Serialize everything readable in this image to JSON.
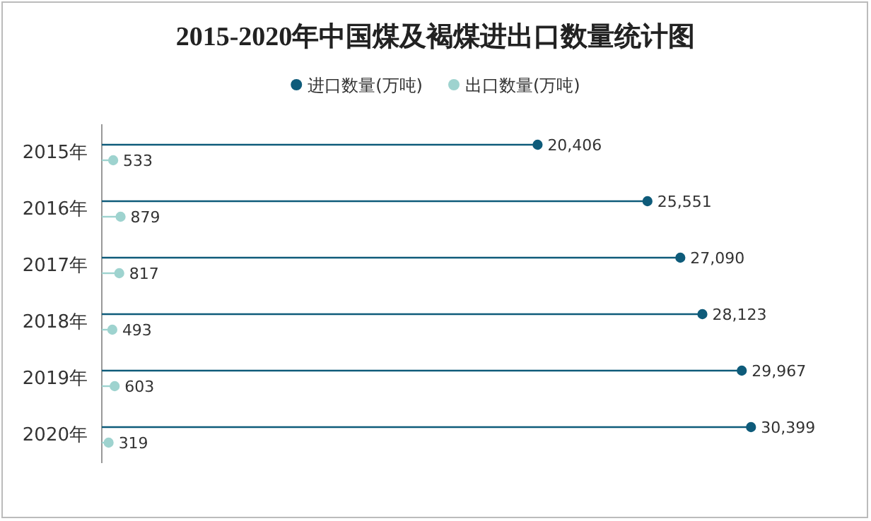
{
  "chart_data": {
    "type": "lollipop",
    "title": "2015-2020年中国煤及褐煤进出口数量统计图",
    "orientation": "horizontal",
    "categories": [
      "2015年",
      "2016年",
      "2017年",
      "2018年",
      "2019年",
      "2020年"
    ],
    "series": [
      {
        "name": "进口数量(万吨)",
        "color": "#0e5b7a",
        "values": [
          20406,
          25551,
          27090,
          28123,
          29967,
          30399
        ],
        "value_labels": [
          "20,406",
          "25,551",
          "27,090",
          "28,123",
          "29,967",
          "30,399"
        ]
      },
      {
        "name": "出口数量(万吨)",
        "color": "#9ed3cf",
        "values": [
          533,
          879,
          817,
          493,
          603,
          319
        ],
        "value_labels": [
          "533",
          "879",
          "817",
          "493",
          "603",
          "319"
        ]
      }
    ],
    "legend": "top",
    "marker": "circle",
    "tick_labels": "y"
  }
}
